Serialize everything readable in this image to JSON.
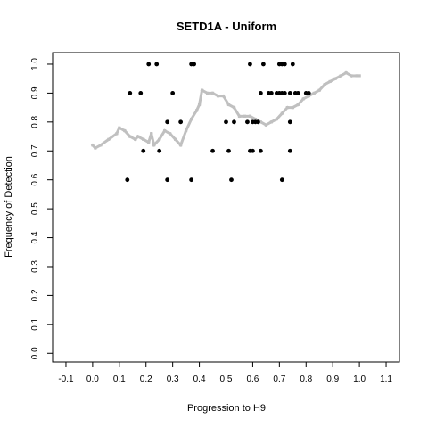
{
  "chart_data": {
    "type": "scatter",
    "title": "SETD1A - Uniform",
    "xlabel": "Progression to H9",
    "ylabel": "Frequency of Detection",
    "xlim": [
      -0.15,
      1.15
    ],
    "ylim": [
      -0.03,
      1.04
    ],
    "xticks": [
      -0.1,
      0.0,
      0.1,
      0.2,
      0.3,
      0.4,
      0.5,
      0.6,
      0.7,
      0.8,
      0.9,
      1.0,
      1.1
    ],
    "xtick_labels": [
      "-0.1",
      "0.0",
      "0.1",
      "0.2",
      "0.3",
      "0.4",
      "0.5",
      "0.6",
      "0.7",
      "0.8",
      "0.9",
      "1.0",
      "1.1"
    ],
    "yticks": [
      0.0,
      0.1,
      0.2,
      0.3,
      0.4,
      0.5,
      0.6,
      0.7,
      0.8,
      0.9,
      1.0
    ],
    "ytick_labels": [
      "0.0",
      "0.1",
      "0.2",
      "0.3",
      "0.4",
      "0.5",
      "0.6",
      "0.7",
      "0.8",
      "0.9",
      "1.0"
    ],
    "grid": false,
    "colors": {
      "points": "#000000",
      "trend": "#c0c0c0"
    },
    "series": [
      {
        "kind": "points",
        "points": [
          [
            0.13,
            0.6
          ],
          [
            0.14,
            0.9
          ],
          [
            0.18,
            0.9
          ],
          [
            0.19,
            0.7
          ],
          [
            0.21,
            1.0
          ],
          [
            0.24,
            1.0
          ],
          [
            0.25,
            0.7
          ],
          [
            0.28,
            0.6
          ],
          [
            0.28,
            0.8
          ],
          [
            0.3,
            0.9
          ],
          [
            0.33,
            0.8
          ],
          [
            0.37,
            0.6
          ],
          [
            0.37,
            1.0
          ],
          [
            0.38,
            1.0
          ],
          [
            0.45,
            0.7
          ],
          [
            0.5,
            0.8
          ],
          [
            0.51,
            0.7
          ],
          [
            0.52,
            0.6
          ],
          [
            0.53,
            0.8
          ],
          [
            0.58,
            0.8
          ],
          [
            0.59,
            0.7
          ],
          [
            0.59,
            1.0
          ],
          [
            0.6,
            0.7
          ],
          [
            0.6,
            0.8
          ],
          [
            0.61,
            0.8
          ],
          [
            0.62,
            0.8
          ],
          [
            0.63,
            0.7
          ],
          [
            0.63,
            0.9
          ],
          [
            0.64,
            1.0
          ],
          [
            0.66,
            0.9
          ],
          [
            0.67,
            0.9
          ],
          [
            0.69,
            0.9
          ],
          [
            0.7,
            0.9
          ],
          [
            0.7,
            1.0
          ],
          [
            0.71,
            0.6
          ],
          [
            0.71,
            0.9
          ],
          [
            0.71,
            1.0
          ],
          [
            0.72,
            0.9
          ],
          [
            0.72,
            1.0
          ],
          [
            0.74,
            0.7
          ],
          [
            0.74,
            0.8
          ],
          [
            0.74,
            0.9
          ],
          [
            0.75,
            1.0
          ],
          [
            0.76,
            0.9
          ],
          [
            0.77,
            0.9
          ],
          [
            0.8,
            0.9
          ],
          [
            0.81,
            0.9
          ]
        ]
      },
      {
        "kind": "trend",
        "points": [
          [
            0.0,
            0.72
          ],
          [
            0.01,
            0.71
          ],
          [
            0.03,
            0.72
          ],
          [
            0.06,
            0.74
          ],
          [
            0.09,
            0.76
          ],
          [
            0.1,
            0.78
          ],
          [
            0.12,
            0.77
          ],
          [
            0.14,
            0.75
          ],
          [
            0.16,
            0.74
          ],
          [
            0.17,
            0.75
          ],
          [
            0.19,
            0.74
          ],
          [
            0.21,
            0.73
          ],
          [
            0.22,
            0.76
          ],
          [
            0.23,
            0.72
          ],
          [
            0.25,
            0.74
          ],
          [
            0.27,
            0.77
          ],
          [
            0.29,
            0.76
          ],
          [
            0.31,
            0.74
          ],
          [
            0.33,
            0.72
          ],
          [
            0.35,
            0.77
          ],
          [
            0.37,
            0.81
          ],
          [
            0.39,
            0.84
          ],
          [
            0.4,
            0.86
          ],
          [
            0.41,
            0.91
          ],
          [
            0.43,
            0.9
          ],
          [
            0.45,
            0.9
          ],
          [
            0.47,
            0.89
          ],
          [
            0.49,
            0.89
          ],
          [
            0.51,
            0.86
          ],
          [
            0.53,
            0.85
          ],
          [
            0.55,
            0.82
          ],
          [
            0.57,
            0.82
          ],
          [
            0.59,
            0.82
          ],
          [
            0.61,
            0.81
          ],
          [
            0.63,
            0.8
          ],
          [
            0.65,
            0.79
          ],
          [
            0.67,
            0.8
          ],
          [
            0.69,
            0.81
          ],
          [
            0.71,
            0.83
          ],
          [
            0.73,
            0.85
          ],
          [
            0.75,
            0.85
          ],
          [
            0.77,
            0.86
          ],
          [
            0.79,
            0.88
          ],
          [
            0.81,
            0.89
          ],
          [
            0.83,
            0.9
          ],
          [
            0.85,
            0.91
          ],
          [
            0.87,
            0.93
          ],
          [
            0.89,
            0.94
          ],
          [
            0.91,
            0.95
          ],
          [
            0.93,
            0.96
          ],
          [
            0.95,
            0.97
          ],
          [
            0.97,
            0.96
          ],
          [
            0.99,
            0.96
          ],
          [
            1.0,
            0.96
          ]
        ]
      }
    ]
  }
}
